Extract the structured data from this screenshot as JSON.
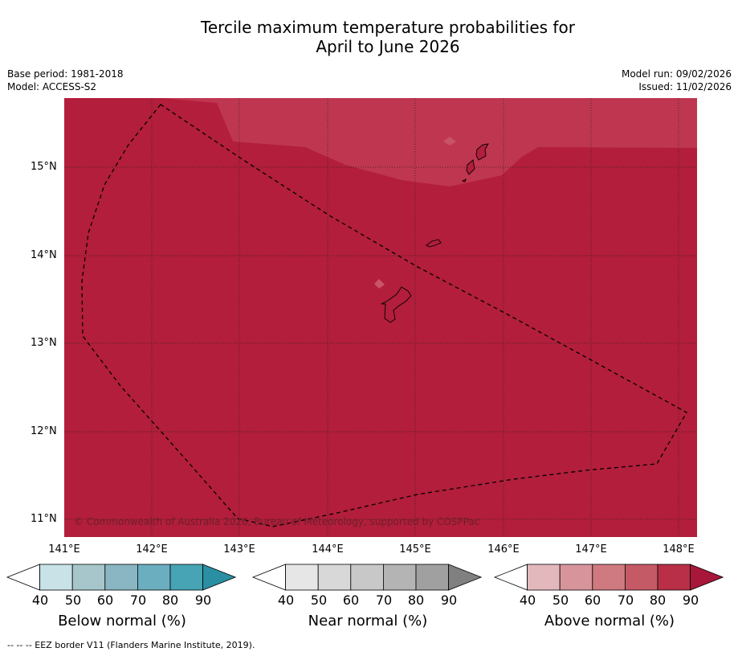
{
  "title": {
    "line1": "Tercile maximum temperature probabilities for",
    "line2": "April to June 2026"
  },
  "meta": {
    "base_period": "Base period: 1981-2018",
    "model": "Model: ACCESS-S2",
    "model_run": "Model run: 09/02/2026",
    "issued": "Issued: 11/02/2026"
  },
  "map": {
    "latitude_labels": [
      "15°N",
      "14°N",
      "13°N",
      "12°N",
      "11°N"
    ],
    "longitude_labels": [
      "141°E",
      "142°E",
      "143°E",
      "144°E",
      "145°E",
      "146°E",
      "147°E",
      "148°E"
    ],
    "copyright": "© Commonwealth of Australia 2026, Bureau of Meteorology, supported by COSPPac",
    "colors": {
      "above_80": "#b21e3b",
      "above_70": "#bf3650",
      "coast": "#000000"
    }
  },
  "legends": [
    {
      "name": "below",
      "title": "Below normal (%)",
      "ticks": [
        "40",
        "50",
        "60",
        "70",
        "80",
        "90"
      ],
      "colors": [
        "#ffffff",
        "#c8e2e8",
        "#a6c6cb",
        "#89b6c2",
        "#6aaebf",
        "#46a4b4",
        "#2a8fa2"
      ]
    },
    {
      "name": "near",
      "title": "Near normal (%)",
      "ticks": [
        "40",
        "50",
        "60",
        "70",
        "80",
        "90"
      ],
      "colors": [
        "#ffffff",
        "#e6e6e6",
        "#d8d8d8",
        "#c8c8c8",
        "#b4b4b4",
        "#a0a0a0",
        "#808080"
      ]
    },
    {
      "name": "above",
      "title": "Above normal (%)",
      "ticks": [
        "40",
        "50",
        "60",
        "70",
        "80",
        "90"
      ],
      "colors": [
        "#ffffff",
        "#e3b8bd",
        "#d7959b",
        "#cf7980",
        "#c45a65",
        "#b82f47",
        "#a8163a"
      ]
    }
  ],
  "footnote": "-- -- -- EEZ border V11 (Flanders Marine Institute, 2019)."
}
